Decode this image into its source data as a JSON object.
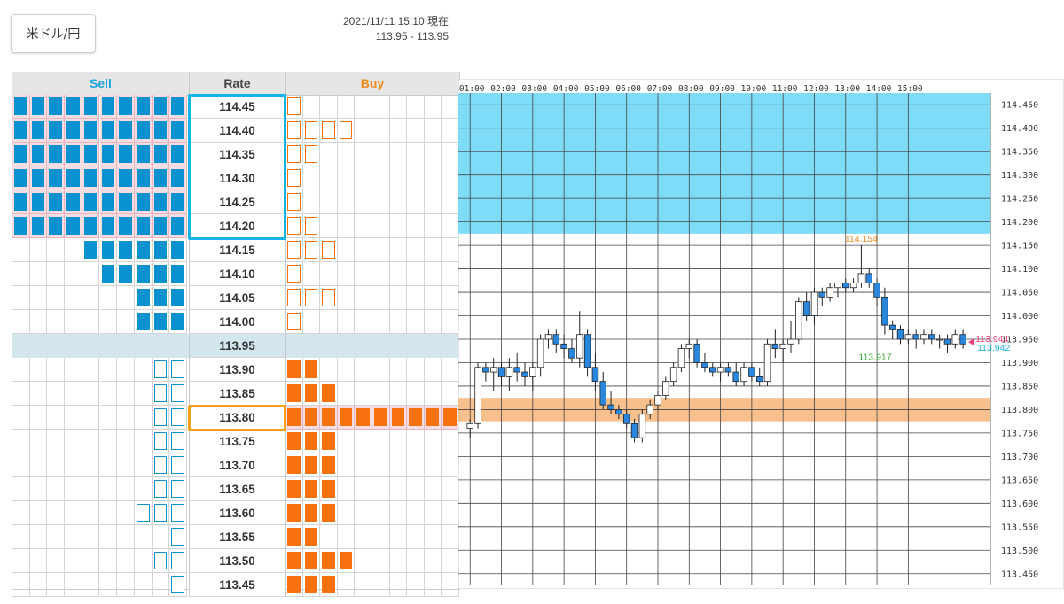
{
  "pair_button": {
    "label": "米ドル/円"
  },
  "timestamp": {
    "datetime": "2021/11/11 15:10",
    "suffix": "現在",
    "bid_ask": "113.95 - 113.95"
  },
  "order_board": {
    "headers": {
      "sell": "Sell",
      "rate": "Rate",
      "buy": "Buy"
    },
    "current_rate": "113.95",
    "rows": [
      {
        "rate": "114.45",
        "sell": 10,
        "sell_type": "filled",
        "buy": 1,
        "buy_type": "outline"
      },
      {
        "rate": "114.40",
        "sell": 10,
        "sell_type": "filled",
        "buy": 4,
        "buy_type": "outline"
      },
      {
        "rate": "114.35",
        "sell": 10,
        "sell_type": "filled",
        "buy": 2,
        "buy_type": "outline"
      },
      {
        "rate": "114.30",
        "sell": 10,
        "sell_type": "filled",
        "buy": 1,
        "buy_type": "outline"
      },
      {
        "rate": "114.25",
        "sell": 10,
        "sell_type": "filled",
        "buy": 1,
        "buy_type": "outline"
      },
      {
        "rate": "114.20",
        "sell": 10,
        "sell_type": "filled",
        "buy": 2,
        "buy_type": "outline"
      },
      {
        "rate": "114.15",
        "sell": 6,
        "sell_type": "filled",
        "buy": 3,
        "buy_type": "outline"
      },
      {
        "rate": "114.10",
        "sell": 5,
        "sell_type": "filled",
        "buy": 1,
        "buy_type": "outline"
      },
      {
        "rate": "114.05",
        "sell": 3,
        "sell_type": "filled",
        "buy": 3,
        "buy_type": "outline"
      },
      {
        "rate": "114.00",
        "sell": 3,
        "sell_type": "filled",
        "buy": 1,
        "buy_type": "outline"
      },
      {
        "rate": "113.95",
        "sell": 0,
        "sell_type": "filled",
        "buy": 0,
        "buy_type": "outline"
      },
      {
        "rate": "113.90",
        "sell": 2,
        "sell_type": "outline",
        "buy": 2,
        "buy_type": "filled"
      },
      {
        "rate": "113.85",
        "sell": 2,
        "sell_type": "outline",
        "buy": 3,
        "buy_type": "filled"
      },
      {
        "rate": "113.80",
        "sell": 2,
        "sell_type": "outline",
        "buy": 10,
        "buy_type": "filled"
      },
      {
        "rate": "113.75",
        "sell": 2,
        "sell_type": "outline",
        "buy": 3,
        "buy_type": "filled"
      },
      {
        "rate": "113.70",
        "sell": 2,
        "sell_type": "outline",
        "buy": 3,
        "buy_type": "filled"
      },
      {
        "rate": "113.65",
        "sell": 2,
        "sell_type": "outline",
        "buy": 3,
        "buy_type": "filled"
      },
      {
        "rate": "113.60",
        "sell": 3,
        "sell_type": "outline",
        "buy": 3,
        "buy_type": "filled"
      },
      {
        "rate": "113.55",
        "sell": 1,
        "sell_type": "outline",
        "buy": 2,
        "buy_type": "filled"
      },
      {
        "rate": "113.50",
        "sell": 2,
        "sell_type": "outline",
        "buy": 4,
        "buy_type": "filled"
      },
      {
        "rate": "113.45",
        "sell": 1,
        "sell_type": "outline",
        "buy": 3,
        "buy_type": "filled"
      }
    ],
    "highlight_sell_range": [
      "114.45",
      "114.20"
    ],
    "highlight_buy_rate": "113.80"
  },
  "chart_data": {
    "type": "candlestick",
    "time_labels": [
      "01:00",
      "02:00",
      "03:00",
      "04:00",
      "05:00",
      "06:00",
      "07:00",
      "08:00",
      "09:00",
      "10:00",
      "11:00",
      "12:00",
      "13:00",
      "14:00",
      "15:00"
    ],
    "y_labels": [
      "114.450",
      "114.400",
      "114.350",
      "114.300",
      "114.250",
      "114.200",
      "114.150",
      "114.100",
      "114.050",
      "114.000",
      "113.950",
      "113.900",
      "113.850",
      "113.800",
      "113.750",
      "113.700",
      "113.650",
      "113.600",
      "113.550",
      "113.500",
      "113.450"
    ],
    "ylim": [
      113.425,
      114.475
    ],
    "sell_zone": [
      114.175,
      114.475
    ],
    "buy_zone": [
      113.775,
      113.825
    ],
    "high_label": "114.154",
    "low_label": "113.917",
    "last_pink": "113.944",
    "last_cyan": "113.942",
    "colors": {
      "up": "#ffffff",
      "down": "#2a86dc",
      "grid": "#444444",
      "sell_zone": "#7fdcf8",
      "buy_zone": "#f7c08c",
      "high": "#f08a1c",
      "low": "#40b040",
      "pink": "#f0417a",
      "cyan": "#1ab0e0"
    },
    "candles": [
      [
        113.76,
        113.78,
        113.74,
        113.77
      ],
      [
        113.77,
        113.9,
        113.76,
        113.89
      ],
      [
        113.89,
        113.9,
        113.86,
        113.88
      ],
      [
        113.88,
        113.91,
        113.84,
        113.89
      ],
      [
        113.89,
        113.9,
        113.85,
        113.87
      ],
      [
        113.87,
        113.91,
        113.84,
        113.89
      ],
      [
        113.89,
        113.92,
        113.86,
        113.88
      ],
      [
        113.88,
        113.9,
        113.85,
        113.87
      ],
      [
        113.87,
        113.9,
        113.84,
        113.89
      ],
      [
        113.89,
        113.96,
        113.87,
        113.95
      ],
      [
        113.95,
        113.97,
        113.93,
        113.96
      ],
      [
        113.96,
        113.97,
        113.92,
        113.94
      ],
      [
        113.94,
        113.96,
        113.91,
        113.93
      ],
      [
        113.93,
        113.95,
        113.9,
        113.91
      ],
      [
        113.91,
        114.01,
        113.89,
        113.96
      ],
      [
        113.96,
        113.97,
        113.87,
        113.89
      ],
      [
        113.89,
        113.92,
        113.84,
        113.86
      ],
      [
        113.86,
        113.88,
        113.8,
        113.81
      ],
      [
        113.81,
        113.84,
        113.79,
        113.8
      ],
      [
        113.8,
        113.81,
        113.78,
        113.79
      ],
      [
        113.79,
        113.8,
        113.76,
        113.77
      ],
      [
        113.77,
        113.78,
        113.73,
        113.74
      ],
      [
        113.74,
        113.8,
        113.73,
        113.79
      ],
      [
        113.79,
        113.82,
        113.78,
        113.81
      ],
      [
        113.81,
        113.84,
        113.8,
        113.83
      ],
      [
        113.83,
        113.87,
        113.82,
        113.86
      ],
      [
        113.86,
        113.9,
        113.85,
        113.89
      ],
      [
        113.89,
        113.94,
        113.88,
        113.93
      ],
      [
        113.93,
        113.95,
        113.91,
        113.94
      ],
      [
        113.94,
        113.95,
        113.89,
        113.9
      ],
      [
        113.9,
        113.92,
        113.88,
        113.89
      ],
      [
        113.89,
        113.9,
        113.87,
        113.88
      ],
      [
        113.88,
        113.9,
        113.86,
        113.89
      ],
      [
        113.89,
        113.9,
        113.87,
        113.88
      ],
      [
        113.88,
        113.9,
        113.85,
        113.86
      ],
      [
        113.86,
        113.9,
        113.85,
        113.89
      ],
      [
        113.89,
        113.9,
        113.86,
        113.87
      ],
      [
        113.87,
        113.89,
        113.85,
        113.86
      ],
      [
        113.86,
        113.95,
        113.85,
        113.94
      ],
      [
        113.94,
        113.97,
        113.91,
        113.93
      ],
      [
        113.93,
        113.95,
        113.9,
        113.94
      ],
      [
        113.94,
        113.99,
        113.92,
        113.95
      ],
      [
        113.95,
        114.04,
        113.94,
        114.03
      ],
      [
        114.03,
        114.05,
        113.99,
        114.0
      ],
      [
        114.0,
        114.06,
        113.98,
        114.05
      ],
      [
        114.05,
        114.06,
        114.02,
        114.04
      ],
      [
        114.04,
        114.07,
        114.03,
        114.06
      ],
      [
        114.06,
        114.07,
        114.04,
        114.07
      ],
      [
        114.07,
        114.08,
        114.05,
        114.06
      ],
      [
        114.06,
        114.08,
        114.05,
        114.07
      ],
      [
        114.07,
        114.15,
        114.06,
        114.09
      ],
      [
        114.09,
        114.1,
        114.06,
        114.07
      ],
      [
        114.07,
        114.08,
        114.02,
        114.04
      ],
      [
        114.04,
        114.06,
        113.96,
        113.98
      ],
      [
        113.98,
        113.99,
        113.95,
        113.97
      ],
      [
        113.97,
        113.98,
        113.94,
        113.95
      ],
      [
        113.95,
        113.97,
        113.94,
        113.96
      ],
      [
        113.96,
        113.97,
        113.93,
        113.95
      ],
      [
        113.95,
        113.97,
        113.94,
        113.96
      ],
      [
        113.96,
        113.97,
        113.94,
        113.95
      ],
      [
        113.95,
        113.96,
        113.93,
        113.95
      ],
      [
        113.95,
        113.96,
        113.92,
        113.94
      ],
      [
        113.94,
        113.97,
        113.93,
        113.96
      ],
      [
        113.96,
        113.97,
        113.93,
        113.94
      ]
    ]
  }
}
